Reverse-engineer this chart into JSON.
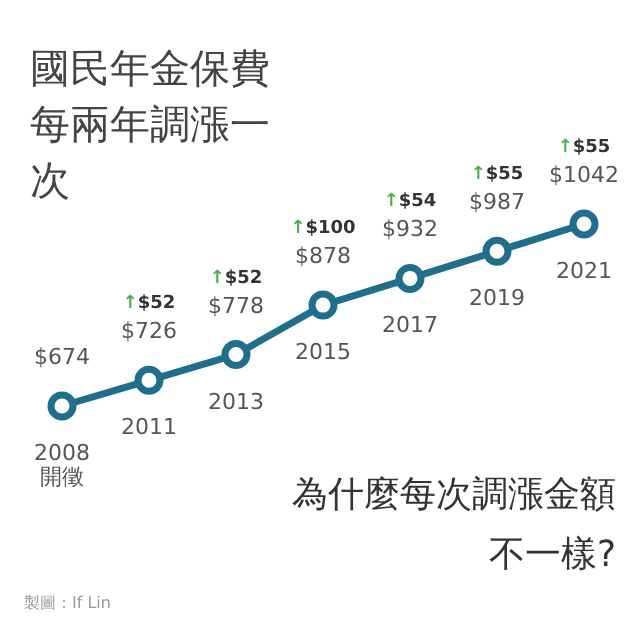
{
  "chart_data": {
    "type": "line",
    "title": "國民年金保費每兩年調漲一次",
    "categories": [
      "2008\n開徵",
      "2011",
      "2013",
      "2015",
      "2017",
      "2019",
      "2021"
    ],
    "values": [
      674,
      726,
      778,
      878,
      932,
      987,
      1042
    ],
    "value_labels": [
      "$674",
      "$726",
      "$778",
      "$878",
      "$932",
      "$987",
      "$1042"
    ],
    "color": "#1f6e8c",
    "marker": "circle",
    "legend": false,
    "annotations": [
      "↑$52",
      "↑$52",
      "↑$100",
      "↑$54",
      "↑$55",
      "↑$55",
      "為什麼每次調漲金額不一樣?",
      "製圖：If Lin"
    ]
  }
}
